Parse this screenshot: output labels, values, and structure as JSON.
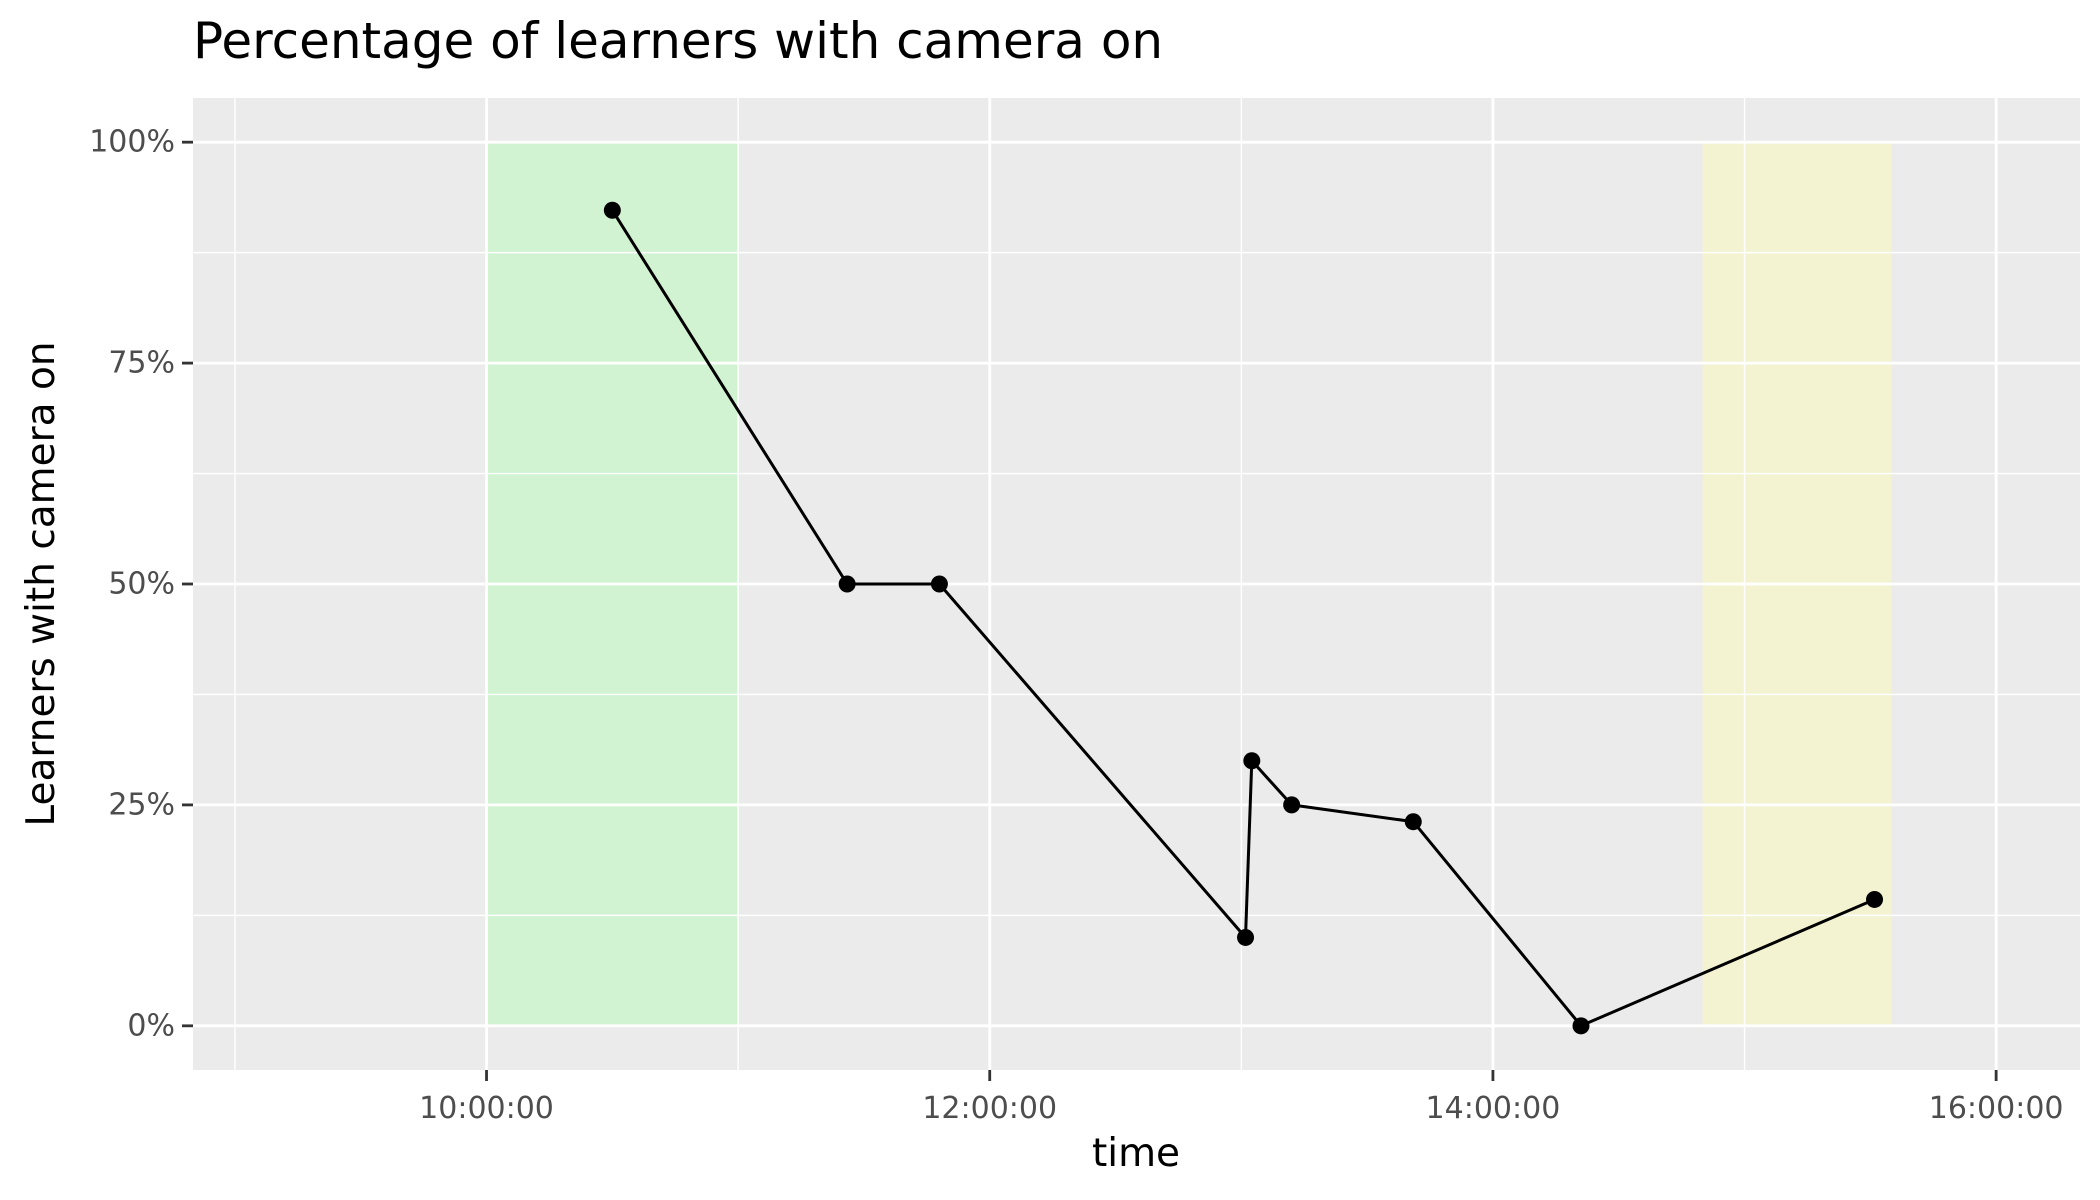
{
  "chart_data": {
    "type": "line",
    "title": "Percentage of learners with camera on",
    "xlabel": "time",
    "ylabel": "Learners with camera on",
    "x_axis_type": "time",
    "xlim": [
      "08:50:00",
      "16:20:00"
    ],
    "ylim": [
      -0.05,
      1.05
    ],
    "x_ticks": [
      "10:00:00",
      "12:00:00",
      "14:00:00",
      "16:00:00"
    ],
    "x_minor_ticks": [
      "09:00:00",
      "11:00:00",
      "13:00:00",
      "15:00:00"
    ],
    "y_ticks": [
      {
        "value": 0,
        "label": "0%"
      },
      {
        "value": 0.25,
        "label": "25%"
      },
      {
        "value": 0.5,
        "label": "50%"
      },
      {
        "value": 0.75,
        "label": "75%"
      },
      {
        "value": 1,
        "label": "100%"
      }
    ],
    "y_minor_ticks": [
      0.125,
      0.375,
      0.625,
      0.875
    ],
    "grid": true,
    "panel_background": "#ebebeb",
    "shaded_regions": [
      {
        "x_start": "10:00:00",
        "x_end": "11:00:00",
        "y_start": 0,
        "y_end": 1,
        "color": "#ccf5cc",
        "opacity": 0.8
      },
      {
        "x_start": "14:50:00",
        "x_end": "15:35:00",
        "y_start": 0,
        "y_end": 1,
        "color": "#f5f5cc",
        "opacity": 0.8
      }
    ],
    "series": [
      {
        "color": "#000000",
        "points": [
          {
            "x": "10:30:00",
            "y": 0.923
          },
          {
            "x": "11:26:00",
            "y": 0.5
          },
          {
            "x": "11:48:00",
            "y": 0.5
          },
          {
            "x": "13:01:00",
            "y": 0.1
          },
          {
            "x": "13:02:30",
            "y": 0.3
          },
          {
            "x": "13:12:00",
            "y": 0.25
          },
          {
            "x": "13:41:00",
            "y": 0.231
          },
          {
            "x": "14:21:00",
            "y": 0.0
          },
          {
            "x": "15:31:00",
            "y": 0.143
          }
        ]
      }
    ]
  }
}
